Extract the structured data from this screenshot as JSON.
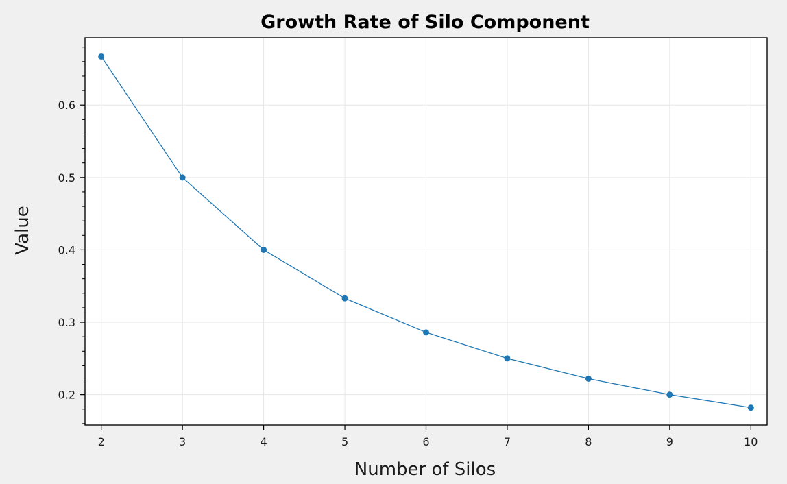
{
  "chart_data": {
    "type": "line",
    "title": "Growth Rate of Silo Component",
    "xlabel": "Number of Silos",
    "ylabel": "Value",
    "x": [
      2,
      3,
      4,
      5,
      6,
      7,
      8,
      9,
      10
    ],
    "series": [
      {
        "values": [
          0.667,
          0.5,
          0.4,
          0.333,
          0.286,
          0.25,
          0.222,
          0.2,
          0.182
        ],
        "color": "#1f77b4"
      }
    ],
    "x_ticks": [
      "2",
      "3",
      "4",
      "5",
      "6",
      "7",
      "8",
      "9",
      "10"
    ],
    "y_ticks": [
      {
        "value": 0.2,
        "label": "0.2"
      },
      {
        "value": 0.3,
        "label": "0.3"
      },
      {
        "value": 0.4,
        "label": "0.4"
      },
      {
        "value": 0.5,
        "label": "0.5"
      },
      {
        "value": 0.6,
        "label": "0.6"
      }
    ],
    "xlim": [
      1.8,
      10.2
    ],
    "ylim": [
      0.158,
      0.693
    ],
    "grid": true,
    "legend": "none"
  }
}
